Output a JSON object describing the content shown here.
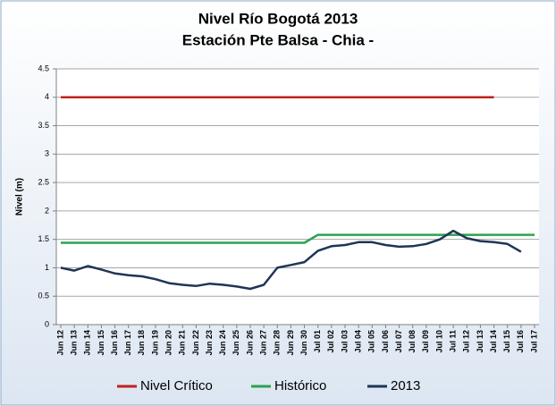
{
  "chart_data": {
    "type": "line",
    "title": "Nivel Río Bogotá  2013",
    "subtitle": "Estación Pte Balsa - Chia -",
    "y_label": "Nivel (m)",
    "categories": [
      "Jun 12",
      "Jun 13",
      "Jun 14",
      "Jun 15",
      "Jun 16",
      "Jun 17",
      "Jun 18",
      "Jun 19",
      "Jun 20",
      "Jun 21",
      "Jun 22",
      "Jun 23",
      "Jun 24",
      "Jun 25",
      "Jun 26",
      "Jun 27",
      "Jun 28",
      "Jun 29",
      "Jun 30",
      "Jul 01",
      "Jul 02",
      "Jul 03",
      "Jul 04",
      "Jul 05",
      "Jul 06",
      "Jul 07",
      "Jul 08",
      "Jul 09",
      "Jul 10",
      "Jul 11",
      "Jul 12",
      "Jul 13",
      "Jul 14",
      "Jul 15",
      "Jul 16",
      "Jul 17"
    ],
    "series": [
      {
        "name": "Nivel Crítico",
        "color": "#c0201e",
        "values": [
          4,
          4,
          4,
          4,
          4,
          4,
          4,
          4,
          4,
          4,
          4,
          4,
          4,
          4,
          4,
          4,
          4,
          4,
          4,
          4,
          4,
          4,
          4,
          4,
          4,
          4,
          4,
          4,
          4,
          4,
          4,
          4,
          4,
          null,
          null,
          null
        ]
      },
      {
        "name": "Histórico",
        "color": "#2ca24e",
        "values": [
          1.44,
          1.44,
          1.44,
          1.44,
          1.44,
          1.44,
          1.44,
          1.44,
          1.44,
          1.44,
          1.44,
          1.44,
          1.44,
          1.44,
          1.44,
          1.44,
          1.44,
          1.44,
          1.44,
          1.58,
          1.58,
          1.58,
          1.58,
          1.58,
          1.58,
          1.58,
          1.58,
          1.58,
          1.58,
          1.58,
          1.58,
          1.58,
          1.58,
          1.58,
          1.58,
          1.58
        ]
      },
      {
        "name": "2013",
        "color": "#1f3556",
        "values": [
          1.0,
          0.95,
          1.03,
          0.97,
          0.9,
          0.87,
          0.85,
          0.8,
          0.73,
          0.7,
          0.68,
          0.72,
          0.7,
          0.67,
          0.63,
          0.7,
          1.0,
          1.05,
          1.1,
          1.3,
          1.38,
          1.4,
          1.45,
          1.45,
          1.4,
          1.37,
          1.38,
          1.42,
          1.5,
          1.65,
          1.52,
          1.47,
          1.45,
          1.42,
          1.28,
          null
        ]
      }
    ],
    "ylim": [
      0,
      4.5
    ],
    "yticks": [
      0,
      0.5,
      1,
      1.5,
      2,
      2.5,
      3,
      3.5,
      4,
      4.5
    ],
    "grid": true,
    "legend": "bottom"
  }
}
